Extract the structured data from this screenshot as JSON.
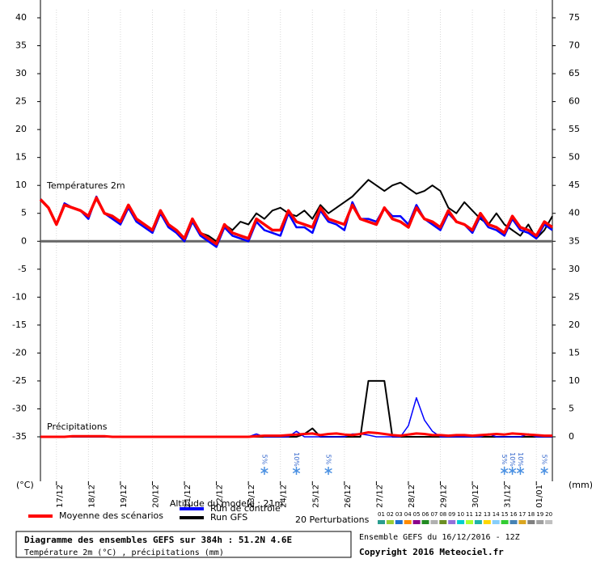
{
  "chart_data": {
    "type": "line",
    "title": "Diagramme des ensembles GEFS sur 384h : 51.2N 4.6E",
    "subtitle": "Température 2m (°C) , précipitations (mm)",
    "run_info": "Ensemble GEFS du 16/12/2016 - 12Z",
    "copyright": "Copyright 2016 Meteociel.fr",
    "temp_label": "Températures 2m",
    "precip_label": "Précipitations",
    "y_unit": "(°C)",
    "y2_unit": "(mm)",
    "altitude": "Altitude du modele : 21m",
    "perturbations_label": "20 Perturbations",
    "perturbations": [
      {
        "label": "01",
        "color": "#2a9d8f"
      },
      {
        "label": "02",
        "color": "#9acd32"
      },
      {
        "label": "03",
        "color": "#1e6fd0"
      },
      {
        "label": "04",
        "color": "#ff8c00"
      },
      {
        "label": "05",
        "color": "#8b008b"
      },
      {
        "label": "06",
        "color": "#228b22"
      },
      {
        "label": "07",
        "color": "#b0b0b0"
      },
      {
        "label": "08",
        "color": "#6b8e23"
      },
      {
        "label": "09",
        "color": "#9370db"
      },
      {
        "label": "10",
        "color": "#00ced1"
      },
      {
        "label": "11",
        "color": "#adff2f"
      },
      {
        "label": "12",
        "color": "#20b2aa"
      },
      {
        "label": "13",
        "color": "#ffd700"
      },
      {
        "label": "14",
        "color": "#87cefa"
      },
      {
        "label": "15",
        "color": "#32cd32"
      },
      {
        "label": "16",
        "color": "#4682b4"
      },
      {
        "label": "17",
        "color": "#daa520"
      },
      {
        "label": "18",
        "color": "#808080"
      },
      {
        "label": "19",
        "color": "#a0a0a0"
      },
      {
        "label": "20",
        "color": "#c0c0c0"
      }
    ],
    "snow": [
      {
        "x": 168,
        "label": "5%"
      },
      {
        "x": 192,
        "label": "10%"
      },
      {
        "x": 216,
        "label": "5%"
      },
      {
        "x": 348,
        "label": "5%"
      },
      {
        "x": 354,
        "label": "10%"
      },
      {
        "x": 360,
        "label": "10%"
      },
      {
        "x": 378,
        "label": "5%"
      }
    ],
    "x": [
      0,
      6,
      12,
      18,
      24,
      30,
      36,
      42,
      48,
      54,
      60,
      66,
      72,
      78,
      84,
      90,
      96,
      102,
      108,
      114,
      120,
      126,
      132,
      138,
      144,
      150,
      156,
      162,
      168,
      174,
      180,
      186,
      192,
      198,
      204,
      210,
      216,
      222,
      228,
      234,
      240,
      246,
      252,
      258,
      264,
      270,
      276,
      282,
      288,
      294,
      300,
      306,
      312,
      318,
      324,
      330,
      336,
      342,
      348,
      354,
      360,
      366,
      372,
      378,
      384
    ],
    "xlim": [
      0,
      384
    ],
    "xticks": [
      {
        "value": 12,
        "label": "17/12"
      },
      {
        "value": 36,
        "label": "18/12"
      },
      {
        "value": 60,
        "label": "19/12"
      },
      {
        "value": 84,
        "label": "20/12"
      },
      {
        "value": 108,
        "label": "21/12"
      },
      {
        "value": 132,
        "label": "22/12"
      },
      {
        "value": 156,
        "label": "23/12"
      },
      {
        "value": 180,
        "label": "24/12"
      },
      {
        "value": 204,
        "label": "25/12"
      },
      {
        "value": 228,
        "label": "26/12"
      },
      {
        "value": 252,
        "label": "27/12"
      },
      {
        "value": 276,
        "label": "28/12"
      },
      {
        "value": 300,
        "label": "29/12"
      },
      {
        "value": 324,
        "label": "30/12"
      },
      {
        "value": 348,
        "label": "31/12"
      },
      {
        "value": 372,
        "label": "01/01"
      }
    ],
    "ylim": [
      -35,
      40
    ],
    "yticks": [
      -35,
      -30,
      -25,
      -20,
      -15,
      -10,
      -5,
      0,
      5,
      10,
      15,
      20,
      25,
      30,
      35,
      40
    ],
    "y2lim": [
      0,
      75
    ],
    "y2ticks": [
      0,
      5,
      10,
      15,
      20,
      25,
      30,
      35,
      40,
      45,
      50,
      55,
      60,
      65,
      70,
      75
    ],
    "grid": true,
    "series": [
      {
        "name": "Moyenne des scénarios",
        "color": "#ff0000",
        "values": [
          7.5,
          6,
          3,
          6.5,
          6,
          5.5,
          4.5,
          7.8,
          5,
          4.5,
          3.5,
          6.5,
          4,
          3,
          2,
          5.5,
          3,
          2,
          0.5,
          4,
          1.5,
          0.5,
          -0.5,
          3,
          1.5,
          1,
          0.5,
          4,
          3,
          2,
          2,
          5.5,
          3.5,
          3,
          2.5,
          6,
          4,
          3.5,
          3,
          6.5,
          4,
          3.5,
          3,
          6,
          4,
          3.5,
          2.5,
          6,
          4,
          3.5,
          2.5,
          5.5,
          3.5,
          3,
          2,
          5,
          3,
          2.5,
          1.5,
          4.5,
          2.5,
          2,
          1,
          3.5,
          2.5
        ]
      },
      {
        "name": "Run de contrôle",
        "color": "#0000ff",
        "values": [
          7.5,
          6,
          3,
          6.8,
          6,
          5.5,
          4,
          8,
          5,
          4,
          3,
          6,
          3.5,
          2.5,
          1.5,
          5,
          2.5,
          1.5,
          0,
          3.5,
          1,
          0,
          -1,
          2.5,
          1,
          0.5,
          0,
          3.5,
          2,
          1.5,
          1,
          5,
          2.5,
          2.5,
          1.5,
          5.5,
          3.5,
          3,
          2,
          7,
          4,
          4,
          3.5,
          6,
          4.5,
          4.5,
          3,
          6.5,
          4,
          3,
          2,
          5,
          3.5,
          3,
          1.5,
          4.5,
          2.5,
          2,
          1,
          4,
          2,
          1.5,
          0.5,
          3,
          2
        ]
      },
      {
        "name": "Run GFS",
        "color": "#000000",
        "values": [
          7.5,
          6,
          3,
          6.5,
          6,
          5.5,
          4.5,
          7.5,
          5,
          4.5,
          3.5,
          6,
          4,
          3,
          2,
          5,
          3,
          2,
          0.5,
          3.5,
          1.5,
          1,
          0,
          3,
          2,
          3.5,
          3,
          5,
          4,
          5.5,
          6,
          5,
          4.5,
          5.5,
          4,
          6.5,
          5,
          6,
          7,
          8,
          9.5,
          11,
          10,
          9,
          10,
          10.5,
          9.5,
          8.5,
          9,
          10,
          9,
          6,
          5,
          7,
          5.5,
          4,
          3,
          5,
          3,
          2,
          1,
          3,
          0.5,
          2,
          4.5
        ]
      },
      {
        "color": "#ff0000",
        "axis": "y2",
        "values": [
          0,
          0,
          0,
          0,
          0.1,
          0.1,
          0.1,
          0.1,
          0.1,
          0,
          0,
          0,
          0,
          0,
          0,
          0,
          0,
          0,
          0,
          0,
          0,
          0,
          0,
          0,
          0,
          0,
          0,
          0.1,
          0.2,
          0.2,
          0.2,
          0.3,
          0.4,
          0.5,
          0.6,
          0.3,
          0.5,
          0.6,
          0.4,
          0.3,
          0.5,
          0.8,
          0.7,
          0.5,
          0.3,
          0.2,
          0.4,
          0.6,
          0.5,
          0.3,
          0.3,
          0.2,
          0.3,
          0.3,
          0.2,
          0.3,
          0.4,
          0.5,
          0.4,
          0.6,
          0.5,
          0.4,
          0.3,
          0.2,
          0.2
        ]
      },
      {
        "color": "#0000ff",
        "axis": "y2",
        "values": [
          0,
          0,
          0,
          0,
          0,
          0,
          0,
          0,
          0,
          0,
          0,
          0,
          0,
          0,
          0,
          0,
          0,
          0,
          0,
          0,
          0,
          0,
          0,
          0,
          0,
          0,
          0,
          0.5,
          0,
          0,
          0,
          0,
          1,
          0,
          0,
          0,
          0,
          0,
          0,
          0.5,
          0.5,
          0.3,
          0,
          0,
          0,
          0,
          2,
          7,
          3,
          1,
          0,
          0,
          0,
          0,
          0,
          0,
          0.5,
          0,
          0,
          0,
          0,
          0.5,
          0,
          0,
          0
        ]
      },
      {
        "color": "#000000",
        "axis": "y2",
        "values": [
          0,
          0,
          0,
          0,
          0,
          0,
          0,
          0,
          0,
          0,
          0,
          0,
          0,
          0,
          0,
          0,
          0,
          0,
          0,
          0,
          0,
          0,
          0,
          0,
          0,
          0,
          0,
          0,
          0,
          0,
          0,
          0,
          0,
          0.5,
          1.5,
          0,
          0,
          0,
          0,
          0,
          0,
          10,
          10,
          10,
          0,
          0,
          0,
          0,
          0,
          0,
          0,
          0,
          0,
          0,
          0,
          0,
          0,
          0,
          0,
          0,
          0,
          0,
          0,
          0,
          0
        ]
      }
    ]
  }
}
